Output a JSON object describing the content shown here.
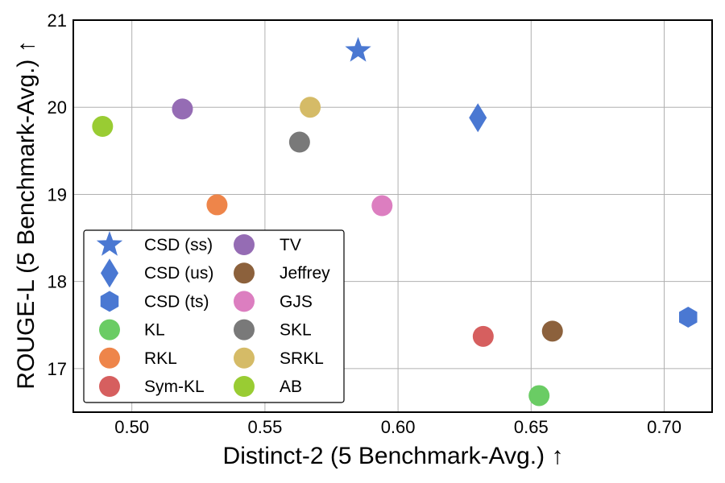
{
  "chart_data": {
    "type": "scatter",
    "title": "",
    "xlabel": "Distinct-2 (5 Benchmark-Avg.) ↑",
    "ylabel": "ROUGE-L (5 Benchmark-Avg.) ↑",
    "xlim": [
      0.478,
      0.718
    ],
    "ylim": [
      16.5,
      21.0
    ],
    "xticks": [
      0.5,
      0.55,
      0.6,
      0.65,
      0.7
    ],
    "xtick_labels": [
      "0.50",
      "0.55",
      "0.60",
      "0.65",
      "0.70"
    ],
    "yticks": [
      17,
      18,
      19,
      20,
      21
    ],
    "ytick_labels": [
      "17",
      "18",
      "19",
      "20",
      "21"
    ],
    "grid": true,
    "legend_position": "bottom-left",
    "legend_columns": 2,
    "series": [
      {
        "name": "CSD (ss)",
        "marker": "star",
        "color": "#4a78d2",
        "x": 0.585,
        "y": 20.65
      },
      {
        "name": "CSD (us)",
        "marker": "diamond",
        "color": "#4a78d2",
        "x": 0.63,
        "y": 19.88
      },
      {
        "name": "CSD (ts)",
        "marker": "hexagon",
        "color": "#4a78d2",
        "x": 0.709,
        "y": 17.59
      },
      {
        "name": "KL",
        "marker": "circle",
        "color": "#6acc64",
        "x": 0.653,
        "y": 16.69
      },
      {
        "name": "RKL",
        "marker": "circle",
        "color": "#ee854a",
        "x": 0.532,
        "y": 18.88
      },
      {
        "name": "Sym-KL",
        "marker": "circle",
        "color": "#d65f5f",
        "x": 0.632,
        "y": 17.37
      },
      {
        "name": "TV",
        "marker": "circle",
        "color": "#956cb4",
        "x": 0.519,
        "y": 19.98
      },
      {
        "name": "Jeffrey",
        "marker": "circle",
        "color": "#8c613c",
        "x": 0.658,
        "y": 17.43
      },
      {
        "name": "GJS",
        "marker": "circle",
        "color": "#dc7ec0",
        "x": 0.594,
        "y": 18.87
      },
      {
        "name": "SKL",
        "marker": "circle",
        "color": "#797979",
        "x": 0.563,
        "y": 19.6
      },
      {
        "name": "SRKL",
        "marker": "circle",
        "color": "#d5bb67",
        "x": 0.567,
        "y": 20.0
      },
      {
        "name": "AB",
        "marker": "circle",
        "color": "#99cc33",
        "x": 0.489,
        "y": 19.78
      }
    ]
  }
}
